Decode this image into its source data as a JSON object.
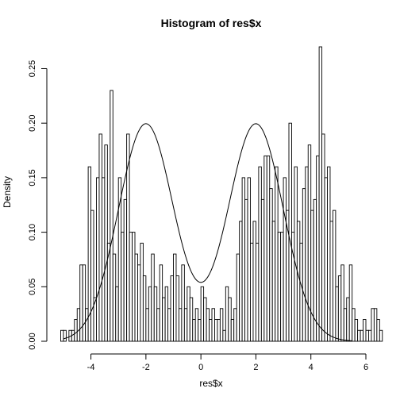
{
  "chart_data": {
    "type": "bar",
    "title": "Histogram of res$x",
    "xlabel": "res$x",
    "ylabel": "Density",
    "xlim": [
      -5.2,
      6.0
    ],
    "ylim": [
      0,
      0.27
    ],
    "x_ticks": [
      -4,
      -2,
      0,
      2,
      4,
      6
    ],
    "y_ticks": [
      0.0,
      0.05,
      0.1,
      0.15,
      0.2,
      0.25
    ],
    "y_tick_labels": [
      "0.00",
      "0.05",
      "0.10",
      "0.15",
      "0.20",
      "0.25"
    ],
    "bin_start": -5.1,
    "bin_width": 0.1,
    "bin_densities": [
      0.01,
      0.01,
      0.0,
      0.01,
      0.01,
      0.02,
      0.03,
      0.07,
      0.07,
      0.03,
      0.16,
      0.12,
      0.04,
      0.15,
      0.19,
      0.15,
      0.18,
      0.09,
      0.23,
      0.08,
      0.05,
      0.15,
      0.1,
      0.13,
      0.19,
      0.1,
      0.1,
      0.08,
      0.07,
      0.09,
      0.06,
      0.03,
      0.05,
      0.08,
      0.05,
      0.03,
      0.07,
      0.04,
      0.05,
      0.03,
      0.06,
      0.08,
      0.06,
      0.03,
      0.07,
      0.03,
      0.05,
      0.04,
      0.02,
      0.03,
      0.02,
      0.05,
      0.04,
      0.03,
      0.02,
      0.03,
      0.02,
      0.02,
      0.03,
      0.01,
      0.05,
      0.04,
      0.02,
      0.03,
      0.08,
      0.11,
      0.15,
      0.13,
      0.15,
      0.09,
      0.11,
      0.09,
      0.16,
      0.13,
      0.17,
      0.17,
      0.14,
      0.11,
      0.16,
      0.1,
      0.1,
      0.15,
      0.12,
      0.2,
      0.1,
      0.16,
      0.11,
      0.09,
      0.14,
      0.16,
      0.18,
      0.12,
      0.13,
      0.17,
      0.27,
      0.19,
      0.15,
      0.16,
      0.11,
      0.12,
      0.05,
      0.06,
      0.07,
      0.03,
      0.04,
      0.07,
      0.03,
      0.02,
      0.01,
      0.01,
      0.02,
      0.01,
      0.01,
      0.03,
      0.03,
      0.02,
      0.01
    ],
    "curve": {
      "type": "normal-mixture",
      "components": [
        {
          "mean": -2,
          "sd": 1,
          "weight": 0.5
        },
        {
          "mean": 2,
          "sd": 1,
          "weight": 0.5
        }
      ],
      "x_range": [
        -5.0,
        5.5
      ]
    }
  }
}
